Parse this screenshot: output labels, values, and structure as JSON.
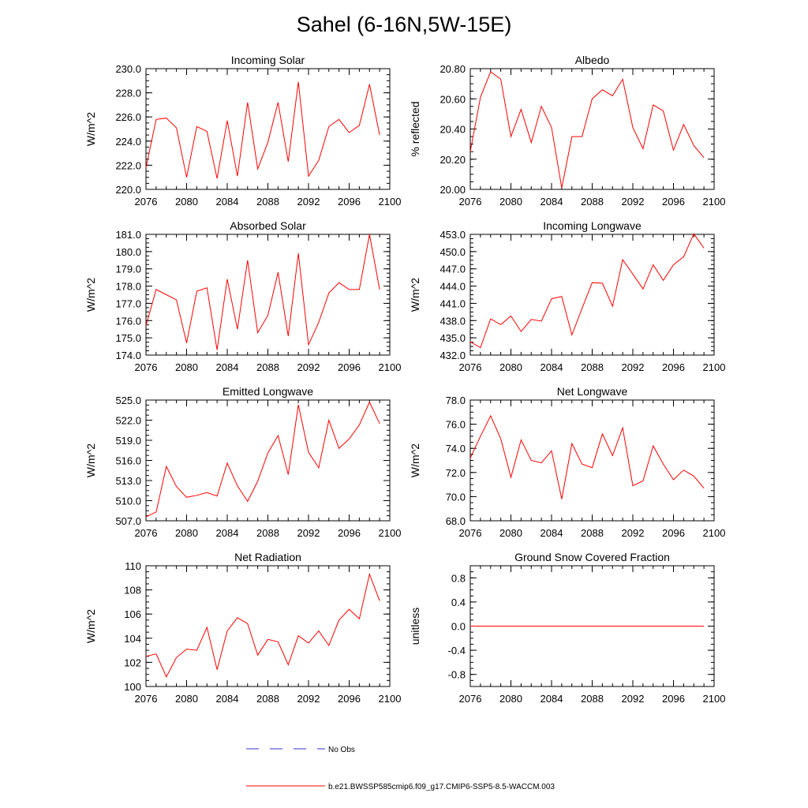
{
  "figure_title": "Sahel (6-16N,5W-15E)",
  "colors": {
    "model": "#ff0000",
    "obs": "#3333cc",
    "axis": "#000000"
  },
  "legend": {
    "obs_label": "No Obs",
    "model_label": "b.e21.BWSSP585cmip6.f09_g17.CMIP6-SSP5-8.5-WACCM.003"
  },
  "chart_data": [
    {
      "type": "line",
      "title": "Incoming Solar",
      "xlabel": "",
      "ylabel": "W/m^2",
      "xlim": [
        2076,
        2100
      ],
      "ylim": [
        220.0,
        230.0
      ],
      "yticks": [
        "220.0",
        "222.0",
        "224.0",
        "226.0",
        "228.0",
        "230.0"
      ],
      "xticks": [
        "2076",
        "2080",
        "2084",
        "2088",
        "2092",
        "2096",
        "2100"
      ],
      "x": [
        2076,
        2077,
        2078,
        2079,
        2080,
        2081,
        2082,
        2083,
        2084,
        2085,
        2086,
        2087,
        2088,
        2089,
        2090,
        2091,
        2092,
        2093,
        2094,
        2095,
        2096,
        2097,
        2098,
        2099
      ],
      "values": [
        221.8,
        225.8,
        225.9,
        225.1,
        221.0,
        225.2,
        224.8,
        220.9,
        225.7,
        221.1,
        227.2,
        221.7,
        223.9,
        227.2,
        222.3,
        228.9,
        221.1,
        222.4,
        225.2,
        225.8,
        224.7,
        225.3,
        228.7,
        224.5
      ]
    },
    {
      "type": "line",
      "title": "Albedo",
      "xlabel": "",
      "ylabel": "% reflected",
      "xlim": [
        2076,
        2100
      ],
      "ylim": [
        20.0,
        20.8
      ],
      "yticks": [
        "20.00",
        "20.20",
        "20.40",
        "20.60",
        "20.80"
      ],
      "xticks": [
        "2076",
        "2080",
        "2084",
        "2088",
        "2092",
        "2096",
        "2100"
      ],
      "x": [
        2076,
        2077,
        2078,
        2079,
        2080,
        2081,
        2082,
        2083,
        2084,
        2085,
        2086,
        2087,
        2088,
        2089,
        2090,
        2091,
        2092,
        2093,
        2094,
        2095,
        2096,
        2097,
        2098,
        2099
      ],
      "values": [
        20.25,
        20.61,
        20.78,
        20.73,
        20.35,
        20.53,
        20.31,
        20.55,
        20.41,
        20.01,
        20.35,
        20.35,
        20.6,
        20.66,
        20.62,
        20.73,
        20.41,
        20.27,
        20.56,
        20.52,
        20.26,
        20.43,
        20.29,
        20.21
      ]
    },
    {
      "type": "line",
      "title": "Absorbed Solar",
      "xlabel": "",
      "ylabel": "W/m^2",
      "xlim": [
        2076,
        2100
      ],
      "ylim": [
        174.0,
        181.0
      ],
      "yticks": [
        "174.0",
        "175.0",
        "176.0",
        "177.0",
        "178.0",
        "179.0",
        "180.0",
        "181.0"
      ],
      "xticks": [
        "2076",
        "2080",
        "2084",
        "2088",
        "2092",
        "2096",
        "2100"
      ],
      "x": [
        2076,
        2077,
        2078,
        2079,
        2080,
        2081,
        2082,
        2083,
        2084,
        2085,
        2086,
        2087,
        2088,
        2089,
        2090,
        2091,
        2092,
        2093,
        2094,
        2095,
        2096,
        2097,
        2098,
        2099
      ],
      "values": [
        175.7,
        177.8,
        177.5,
        177.2,
        174.7,
        177.7,
        177.9,
        174.3,
        178.4,
        175.5,
        179.5,
        175.3,
        176.3,
        178.8,
        175.1,
        179.9,
        174.6,
        175.9,
        177.6,
        178.2,
        177.8,
        177.8,
        181.0,
        177.8
      ]
    },
    {
      "type": "line",
      "title": "Incoming Longwave",
      "xlabel": "",
      "ylabel": "W/m^2",
      "xlim": [
        2076,
        2100
      ],
      "ylim": [
        432.0,
        453.0
      ],
      "yticks": [
        "432.0",
        "435.0",
        "438.0",
        "441.0",
        "444.0",
        "447.0",
        "450.0",
        "453.0"
      ],
      "xticks": [
        "2076",
        "2080",
        "2084",
        "2088",
        "2092",
        "2096",
        "2100"
      ],
      "x": [
        2076,
        2077,
        2078,
        2079,
        2080,
        2081,
        2082,
        2083,
        2084,
        2085,
        2086,
        2087,
        2088,
        2089,
        2090,
        2091,
        2092,
        2093,
        2094,
        2095,
        2096,
        2097,
        2098,
        2099
      ],
      "values": [
        434.3,
        433.3,
        438.3,
        437.3,
        438.8,
        436.1,
        438.2,
        437.9,
        441.8,
        442.2,
        435.5,
        440.1,
        444.6,
        444.5,
        440.5,
        448.6,
        446.1,
        443.5,
        447.7,
        445.0,
        447.7,
        449.1,
        453.1,
        450.6
      ]
    },
    {
      "type": "line",
      "title": "Emitted Longwave",
      "xlabel": "",
      "ylabel": "W/m^2",
      "xlim": [
        2076,
        2100
      ],
      "ylim": [
        507.0,
        525.0
      ],
      "yticks": [
        "507.0",
        "510.0",
        "513.0",
        "516.0",
        "519.0",
        "522.0",
        "525.0"
      ],
      "xticks": [
        "2076",
        "2080",
        "2084",
        "2088",
        "2092",
        "2096",
        "2100"
      ],
      "x": [
        2076,
        2077,
        2078,
        2079,
        2080,
        2081,
        2082,
        2083,
        2084,
        2085,
        2086,
        2087,
        2088,
        2089,
        2090,
        2091,
        2092,
        2093,
        2094,
        2095,
        2096,
        2097,
        2098,
        2099
      ],
      "values": [
        507.6,
        508.3,
        515.1,
        512.1,
        510.5,
        510.8,
        511.2,
        510.7,
        515.6,
        512.2,
        509.9,
        512.9,
        517.1,
        519.7,
        513.9,
        524.3,
        517.2,
        514.9,
        522.0,
        517.8,
        519.2,
        521.3,
        524.7,
        521.5
      ]
    },
    {
      "type": "line",
      "title": "Net Longwave",
      "xlabel": "",
      "ylabel": "W/m^2",
      "xlim": [
        2076,
        2100
      ],
      "ylim": [
        68.0,
        78.0
      ],
      "yticks": [
        "68.0",
        "70.0",
        "72.0",
        "74.0",
        "76.0",
        "78.0"
      ],
      "xticks": [
        "2076",
        "2080",
        "2084",
        "2088",
        "2092",
        "2096",
        "2100"
      ],
      "x": [
        2076,
        2077,
        2078,
        2079,
        2080,
        2081,
        2082,
        2083,
        2084,
        2085,
        2086,
        2087,
        2088,
        2089,
        2090,
        2091,
        2092,
        2093,
        2094,
        2095,
        2096,
        2097,
        2098,
        2099
      ],
      "values": [
        73.2,
        75.0,
        76.7,
        74.8,
        71.6,
        74.7,
        73.0,
        72.8,
        73.8,
        69.8,
        74.4,
        72.7,
        72.4,
        75.2,
        73.4,
        75.7,
        70.9,
        71.3,
        74.2,
        72.7,
        71.4,
        72.2,
        71.7,
        70.7
      ]
    },
    {
      "type": "line",
      "title": "Net Radiation",
      "xlabel": "",
      "ylabel": "W/m^2",
      "xlim": [
        2076,
        2100
      ],
      "ylim": [
        100,
        110
      ],
      "yticks": [
        "100",
        "102",
        "104",
        "106",
        "108",
        "110"
      ],
      "xticks": [
        "2076",
        "2080",
        "2084",
        "2088",
        "2092",
        "2096",
        "2100"
      ],
      "x": [
        2076,
        2077,
        2078,
        2079,
        2080,
        2081,
        2082,
        2083,
        2084,
        2085,
        2086,
        2087,
        2088,
        2089,
        2090,
        2091,
        2092,
        2093,
        2094,
        2095,
        2096,
        2097,
        2098,
        2099
      ],
      "values": [
        102.5,
        102.7,
        100.8,
        102.4,
        103.1,
        103.0,
        104.9,
        101.4,
        104.6,
        105.7,
        105.2,
        102.6,
        103.9,
        103.7,
        101.8,
        104.2,
        103.6,
        104.6,
        103.4,
        105.5,
        106.4,
        105.6,
        109.3,
        107.1
      ]
    },
    {
      "type": "line",
      "title": "Ground Snow Covered Fraction",
      "xlabel": "",
      "ylabel": "unitless",
      "xlim": [
        2076,
        2100
      ],
      "ylim": [
        -1.0,
        1.0
      ],
      "yticks": [
        "-0.8",
        "-0.4",
        "0.0",
        "0.4",
        "0.8"
      ],
      "ytick_values": [
        -0.8,
        -0.4,
        0.0,
        0.4,
        0.8
      ],
      "xticks": [
        "2076",
        "2080",
        "2084",
        "2088",
        "2092",
        "2096",
        "2100"
      ],
      "x": [
        2076,
        2077,
        2078,
        2079,
        2080,
        2081,
        2082,
        2083,
        2084,
        2085,
        2086,
        2087,
        2088,
        2089,
        2090,
        2091,
        2092,
        2093,
        2094,
        2095,
        2096,
        2097,
        2098,
        2099
      ],
      "values": [
        0,
        0,
        0,
        0,
        0,
        0,
        0,
        0,
        0,
        0,
        0,
        0,
        0,
        0,
        0,
        0,
        0,
        0,
        0,
        0,
        0,
        0,
        0,
        0
      ]
    }
  ]
}
